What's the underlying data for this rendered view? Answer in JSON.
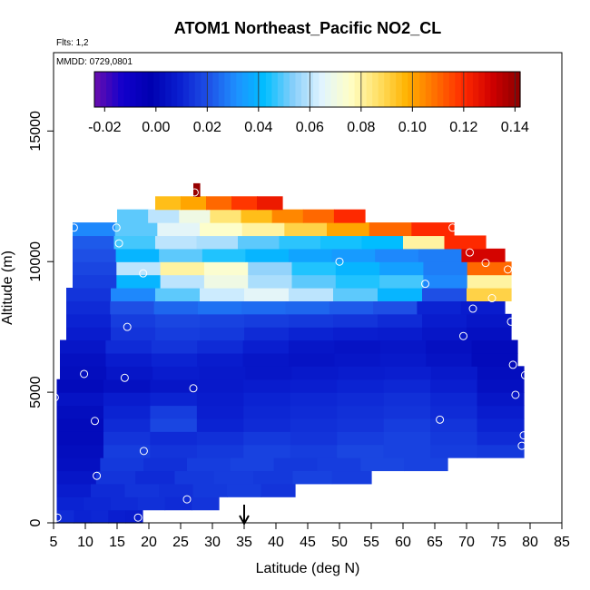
{
  "chart_data": {
    "type": "heatmap",
    "title": "ATOM1 Northeast_Pacific NO2_CL",
    "flights_note": "Flts: 1,2",
    "date_note": "MMDD: 0729,0801",
    "xlabel": "Latitude (deg N)",
    "ylabel": "Altitude (m)",
    "xlim": [
      5,
      85
    ],
    "ylim": [
      0,
      18000
    ],
    "x_ticks": [
      "5",
      "10",
      "15",
      "20",
      "25",
      "30",
      "35",
      "40",
      "45",
      "50",
      "55",
      "60",
      "65",
      "70",
      "75",
      "80",
      "85"
    ],
    "y_ticks": [
      "0",
      "5000",
      "10000",
      "15000"
    ],
    "colorbar": {
      "range": [
        -0.024,
        0.142
      ],
      "ticks": [
        "-0.02",
        "0.00",
        "0.02",
        "0.04",
        "0.06",
        "0.08",
        "0.10",
        "0.12",
        "0.14"
      ],
      "tick_values": [
        -0.02,
        0.0,
        0.02,
        0.04,
        0.06,
        0.08,
        0.1,
        0.12,
        0.14
      ],
      "colors": [
        "#6a0dad",
        "#1100cc",
        "#0000b0",
        "#0a1fd0",
        "#1e50e6",
        "#1e90ff",
        "#00bfff",
        "#87cefa",
        "#e0f4ff",
        "#ffffc8",
        "#ffe066",
        "#ffb300",
        "#ff7000",
        "#ff2a00",
        "#d00000",
        "#8b0000"
      ]
    },
    "layers": [
      {
        "z0": 0,
        "z1": 500,
        "x0": 5.5,
        "x1": 19,
        "values": [
          0.012,
          0.01,
          0.011,
          0.009,
          0.008
        ]
      },
      {
        "z0": 500,
        "z1": 1000,
        "x0": 5.5,
        "x1": 31,
        "values": [
          0.01,
          0.011,
          0.012,
          0.013,
          0.012,
          0.014
        ]
      },
      {
        "z0": 1000,
        "z1": 1500,
        "x0": 5.5,
        "x1": 43,
        "values": [
          0.008,
          0.012,
          0.014,
          0.013,
          0.015,
          0.016,
          0.014
        ]
      },
      {
        "z0": 1500,
        "z1": 2000,
        "x0": 5.5,
        "x1": 55,
        "values": [
          0.006,
          0.014,
          0.012,
          0.015,
          0.016,
          0.015,
          0.017,
          0.016
        ]
      },
      {
        "z0": 2000,
        "z1": 2500,
        "x0": 5.5,
        "x1": 67,
        "values": [
          0.004,
          0.015,
          0.013,
          0.016,
          0.017,
          0.015,
          0.016,
          0.018,
          0.017
        ]
      },
      {
        "z0": 2500,
        "z1": 3000,
        "x0": 5.5,
        "x1": 79,
        "values": [
          0.003,
          0.016,
          0.014,
          0.015,
          0.017,
          0.016,
          0.018,
          0.017,
          0.016,
          0.015
        ]
      },
      {
        "z0": 3000,
        "z1": 3500,
        "x0": 5.5,
        "x1": 79,
        "values": [
          0.002,
          0.014,
          0.012,
          0.013,
          0.015,
          0.014,
          0.016,
          0.017,
          0.015,
          0.012
        ]
      },
      {
        "z0": 3500,
        "z1": 4000,
        "x0": 5.5,
        "x1": 79,
        "values": [
          0.002,
          0.012,
          0.018,
          0.01,
          0.012,
          0.013,
          0.014,
          0.016,
          0.014,
          0.01
        ]
      },
      {
        "z0": 4000,
        "z1": 4500,
        "x0": 5.5,
        "x1": 79,
        "values": [
          0.003,
          0.01,
          0.016,
          0.009,
          0.011,
          0.012,
          0.013,
          0.014,
          0.012,
          0.008
        ]
      },
      {
        "z0": 4500,
        "z1": 5000,
        "x0": 5.5,
        "x1": 79,
        "values": [
          0.005,
          0.008,
          0.01,
          0.008,
          0.01,
          0.011,
          0.012,
          0.013,
          0.011,
          0.006
        ]
      },
      {
        "z0": 5000,
        "z1": 5500,
        "x0": 5.5,
        "x1": 79,
        "values": [
          0.002,
          0.004,
          0.006,
          0.007,
          0.008,
          0.009,
          0.01,
          0.011,
          0.009,
          0.004
        ]
      },
      {
        "z0": 5500,
        "z1": 6000,
        "x0": 6,
        "x1": 79,
        "values": [
          0.003,
          0.006,
          0.008,
          0.007,
          0.006,
          0.007,
          0.008,
          0.009,
          0.007,
          0.003
        ]
      },
      {
        "z0": 6000,
        "z1": 6500,
        "x0": 6,
        "x1": 78,
        "values": [
          0.004,
          0.008,
          0.01,
          0.008,
          0.006,
          0.005,
          0.006,
          0.007,
          0.005,
          0.002
        ]
      },
      {
        "z0": 6500,
        "z1": 7000,
        "x0": 6,
        "x1": 78,
        "values": [
          0.006,
          0.012,
          0.014,
          0.012,
          0.009,
          0.006,
          0.005,
          0.006,
          0.004,
          0.002
        ]
      },
      {
        "z0": 7000,
        "z1": 7500,
        "x0": 7,
        "x1": 77,
        "values": [
          0.008,
          0.014,
          0.016,
          0.015,
          0.012,
          0.01,
          0.009,
          0.008,
          0.006,
          0.004
        ]
      },
      {
        "z0": 7500,
        "z1": 8000,
        "x0": 7,
        "x1": 77,
        "values": [
          0.01,
          0.016,
          0.018,
          0.017,
          0.016,
          0.015,
          0.014,
          0.012,
          0.008,
          0.006
        ]
      },
      {
        "z0": 8000,
        "z1": 8500,
        "x0": 7,
        "x1": 76,
        "values": [
          0.012,
          0.02,
          0.024,
          0.026,
          0.025,
          0.024,
          0.022,
          0.02,
          0.01,
          0.008
        ]
      },
      {
        "z0": 8500,
        "z1": 9000,
        "x0": 7,
        "x1": 77,
        "values": [
          0.014,
          0.03,
          0.05,
          0.062,
          0.066,
          0.06,
          0.05,
          0.04,
          0.02,
          0.09
        ]
      },
      {
        "z0": 9000,
        "z1": 9500,
        "x0": 8,
        "x1": 77,
        "values": [
          0.016,
          0.04,
          0.06,
          0.07,
          0.058,
          0.05,
          0.045,
          0.048,
          0.03,
          0.08
        ]
      },
      {
        "z0": 9500,
        "z1": 10000,
        "x0": 8,
        "x1": 77,
        "values": [
          0.018,
          0.06,
          0.08,
          0.074,
          0.055,
          0.045,
          0.04,
          0.035,
          0.028,
          0.11
        ]
      },
      {
        "z0": 10000,
        "z1": 10500,
        "x0": 8,
        "x1": 76,
        "values": [
          0.02,
          0.04,
          0.05,
          0.045,
          0.04,
          0.036,
          0.034,
          0.03,
          0.028,
          0.13
        ]
      },
      {
        "z0": 10500,
        "z1": 11000,
        "x0": 8,
        "x1": 73,
        "values": [
          0.022,
          0.048,
          0.06,
          0.058,
          0.05,
          0.046,
          0.044,
          0.042,
          0.08,
          0.12
        ]
      },
      {
        "z0": 11000,
        "z1": 11500,
        "x0": 8,
        "x1": 68,
        "values": [
          0.03,
          0.05,
          0.066,
          0.075,
          0.08,
          0.09,
          0.1,
          0.11,
          0.12
        ]
      },
      {
        "z0": 11500,
        "z1": 12000,
        "x0": 15,
        "x1": 54,
        "values": [
          0.05,
          0.06,
          0.07,
          0.085,
          0.095,
          0.105,
          0.11,
          0.12
        ]
      },
      {
        "z0": 12000,
        "z1": 12500,
        "x0": 21,
        "x1": 41,
        "values": [
          0.095,
          0.1,
          0.11,
          0.118,
          0.124
        ]
      },
      {
        "z0": 12500,
        "z1": 13000,
        "x0": 27,
        "x1": 28,
        "values": [
          0.14
        ]
      }
    ],
    "sample_points": [
      {
        "x": 5.6,
        "y": 200
      },
      {
        "x": 18.3,
        "y": 200
      },
      {
        "x": 26,
        "y": 900
      },
      {
        "x": 11.8,
        "y": 1800
      },
      {
        "x": 19.2,
        "y": 2750
      },
      {
        "x": 78.7,
        "y": 2950
      },
      {
        "x": 79,
        "y": 3350
      },
      {
        "x": 11.5,
        "y": 3900
      },
      {
        "x": 65.8,
        "y": 3950
      },
      {
        "x": 5.2,
        "y": 4800
      },
      {
        "x": 27,
        "y": 5150
      },
      {
        "x": 77.7,
        "y": 4900
      },
      {
        "x": 9.8,
        "y": 5700
      },
      {
        "x": 16.2,
        "y": 5550
      },
      {
        "x": 79.2,
        "y": 5650
      },
      {
        "x": 77.3,
        "y": 6050
      },
      {
        "x": 16.6,
        "y": 7500
      },
      {
        "x": 69.5,
        "y": 7150
      },
      {
        "x": 77,
        "y": 7700
      },
      {
        "x": 71,
        "y": 8200
      },
      {
        "x": 74,
        "y": 8600
      },
      {
        "x": 63.5,
        "y": 9150
      },
      {
        "x": 19.1,
        "y": 9550
      },
      {
        "x": 76.5,
        "y": 9700
      },
      {
        "x": 15.3,
        "y": 10700
      },
      {
        "x": 50,
        "y": 10000
      },
      {
        "x": 70.5,
        "y": 10350
      },
      {
        "x": 73,
        "y": 9950
      },
      {
        "x": 8.2,
        "y": 11300
      },
      {
        "x": 14.9,
        "y": 11300
      },
      {
        "x": 67.8,
        "y": 11300
      },
      {
        "x": 27.2,
        "y": 12650
      }
    ],
    "marker": {
      "x": 35,
      "label": "arrow"
    }
  }
}
